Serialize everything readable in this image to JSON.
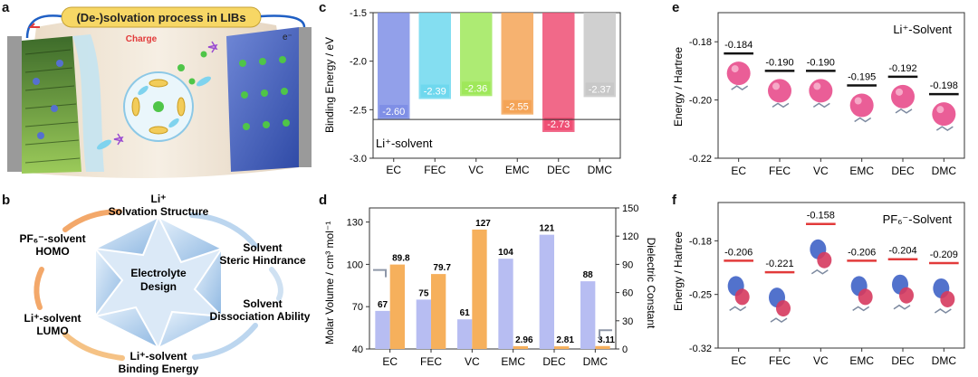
{
  "panel_labels": {
    "a": "a",
    "b": "b",
    "c": "c",
    "d": "d",
    "e": "e",
    "f": "f"
  },
  "colors": {
    "ec": "#7f8fe6",
    "fec": "#6fd8ee",
    "vc": "#9fe85a",
    "emc": "#f4a457",
    "dec": "#ef4f74",
    "dmc": "#c8c8c8",
    "lavender": "#b7bdf2",
    "orange": "#f6b05c",
    "pink": "#e84c8c",
    "red_line": "#e23a3a",
    "arrow": "#1f5fc4",
    "charge": "#e23a3a"
  },
  "panel_a": {
    "title": "(De-)solvation process in LIBs",
    "charge_label": "Charge",
    "electron_label": "e⁻"
  },
  "panel_b": {
    "center_label_1": "Electrolyte",
    "center_label_2": "Design",
    "nodes": [
      {
        "line1": "Li⁺",
        "line2": "Solvation Structure"
      },
      {
        "line1": "Solvent",
        "line2": "Steric Hindrance"
      },
      {
        "line1": "Solvent",
        "line2": "Dissociation Ability"
      },
      {
        "line1": "Li⁺-solvent",
        "line2": "Binding Energy"
      },
      {
        "line1": "Li⁺-solvent",
        "line2": "LUMO"
      },
      {
        "line1": "PF₆⁻-solvent",
        "line2": "HOMO"
      }
    ]
  },
  "chart_data": [
    {
      "id": "c",
      "type": "bar",
      "title": "",
      "ylabel": "Binding Energy / eV",
      "categories": [
        "EC",
        "FEC",
        "VC",
        "EMC",
        "DEC",
        "DMC"
      ],
      "values": [
        -2.6,
        -2.39,
        -2.36,
        -2.55,
        -2.73,
        -2.37
      ],
      "value_labels": [
        "-2.60",
        "-2.39",
        "-2.36",
        "-2.55",
        "-2.73",
        "-2.37"
      ],
      "ylim": [
        -3.0,
        -1.5
      ],
      "yticks": [
        "-1.5",
        "-2.0",
        "-2.5",
        "-3.0"
      ],
      "reference_line": -2.6,
      "annotation": "Li⁺-solvent"
    },
    {
      "id": "d",
      "type": "bar",
      "ylabel_left": "Molar Volume / cm³ mol⁻¹",
      "ylabel_right": "Dielectric Constant",
      "categories": [
        "EC",
        "FEC",
        "VC",
        "EMC",
        "DEC",
        "DMC"
      ],
      "series": [
        {
          "name": "Molar Volume",
          "axis": "left",
          "values": [
            67,
            75,
            61,
            104,
            121,
            88
          ],
          "labels": [
            "67",
            "75",
            "61",
            "104",
            "121",
            "88"
          ]
        },
        {
          "name": "Dielectric Constant",
          "axis": "right",
          "values": [
            89.8,
            79.7,
            127,
            2.96,
            2.81,
            3.11
          ],
          "labels": [
            "89.8",
            "79.7",
            "127",
            "2.96",
            "2.81",
            "3.11"
          ]
        }
      ],
      "ylim_left": [
        40,
        140
      ],
      "yticks_left": [
        "40",
        "70",
        "100",
        "130"
      ],
      "ylim_right": [
        0,
        150
      ],
      "yticks_right": [
        "0",
        "30",
        "60",
        "90",
        "120",
        "150"
      ]
    },
    {
      "id": "e",
      "type": "scatter",
      "ylabel": "Energy / Hartree",
      "categories": [
        "EC",
        "FEC",
        "VC",
        "EMC",
        "DEC",
        "DMC"
      ],
      "values": [
        -0.184,
        -0.19,
        -0.19,
        -0.195,
        -0.192,
        -0.198
      ],
      "value_labels": [
        "-0.184",
        "-0.190",
        "-0.190",
        "-0.195",
        "-0.192",
        "-0.198"
      ],
      "ylim": [
        -0.22,
        -0.17
      ],
      "yticks": [
        "-0.18",
        "-0.20",
        "-0.22"
      ],
      "annotation": "Li⁺-Solvent"
    },
    {
      "id": "f",
      "type": "scatter",
      "ylabel": "Energy / Hartree",
      "categories": [
        "EC",
        "FEC",
        "VC",
        "EMC",
        "DEC",
        "DMC"
      ],
      "values": [
        -0.206,
        -0.221,
        -0.158,
        -0.206,
        -0.204,
        -0.209
      ],
      "value_labels": [
        "-0.206",
        "-0.221",
        "-0.158",
        "-0.206",
        "-0.204",
        "-0.209"
      ],
      "ylim": [
        -0.32,
        -0.13
      ],
      "yticks": [
        "-0.18",
        "-0.25",
        "-0.32"
      ],
      "annotation": "PF₆⁻-Solvent"
    }
  ]
}
